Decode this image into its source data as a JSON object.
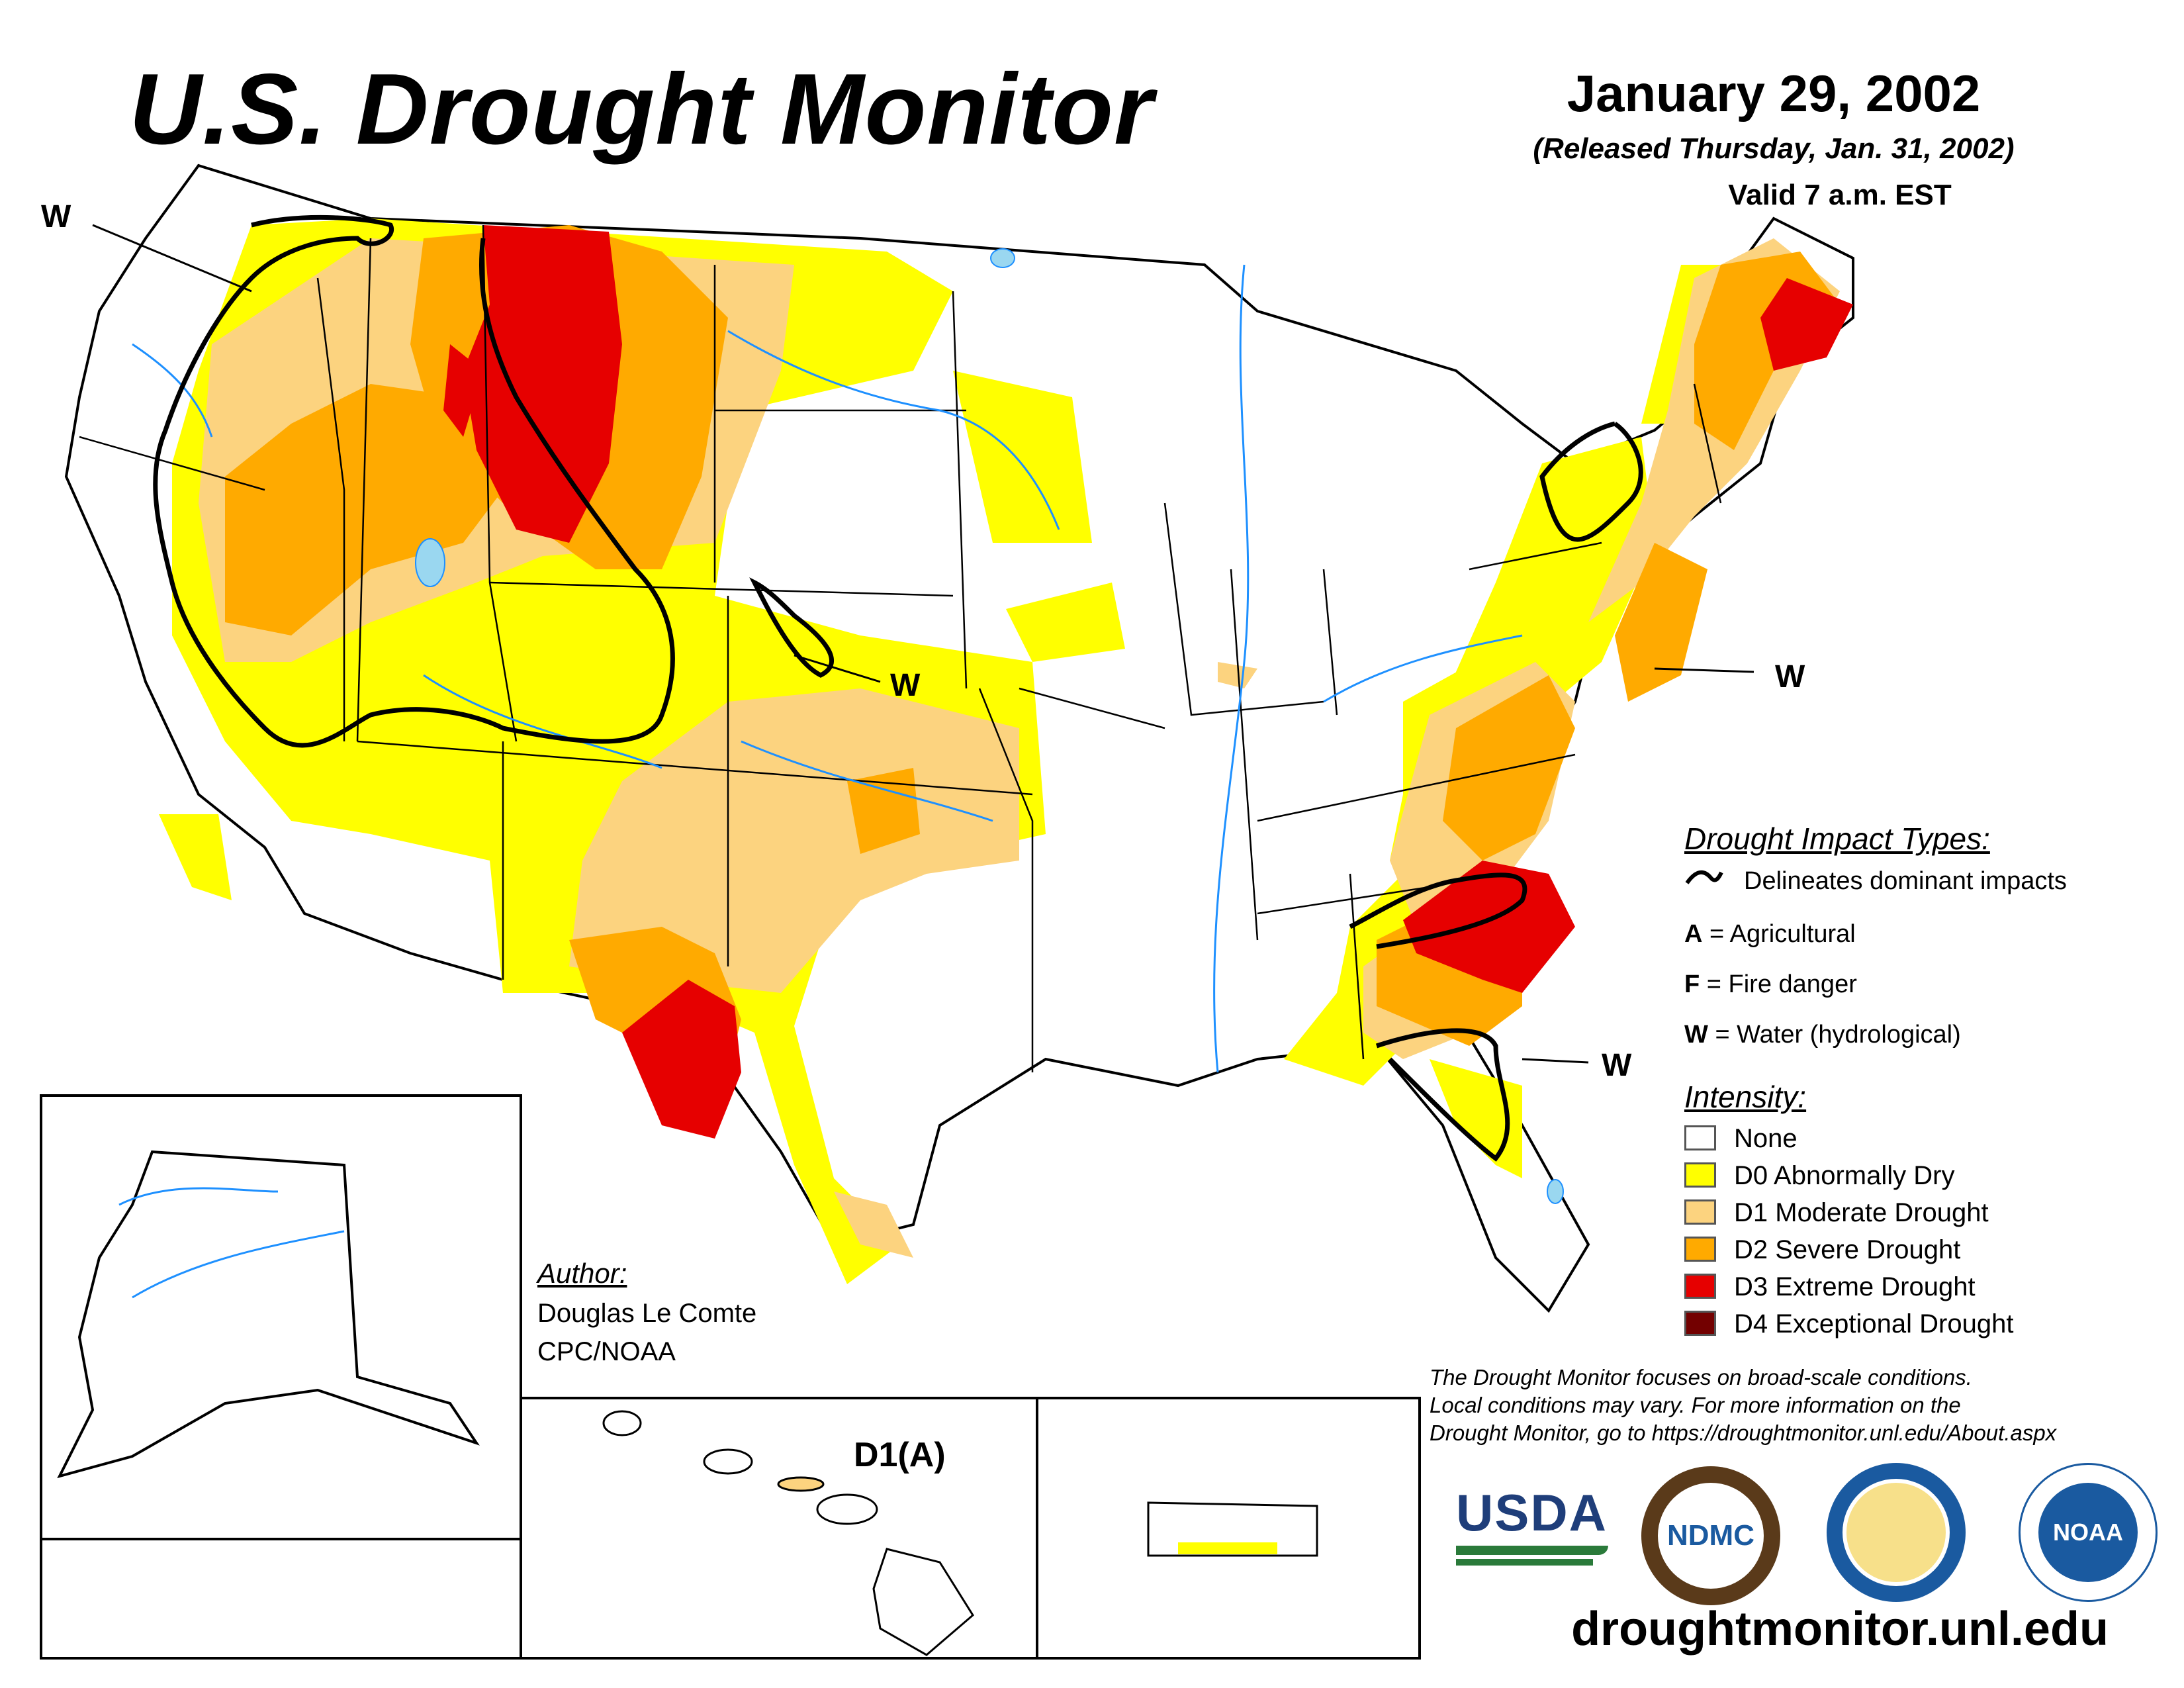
{
  "header": {
    "title": "U.S. Drought Monitor",
    "date": "January 29, 2002",
    "released": "(Released Thursday, Jan. 31, 2002)",
    "valid": "Valid 7 a.m. EST"
  },
  "impact_legend": {
    "heading": "Drought Impact Types:",
    "delineates": "Delineates dominant impacts",
    "types": [
      {
        "code": "A",
        "label": "= Agricultural"
      },
      {
        "code": "F",
        "label": "= Fire danger"
      },
      {
        "code": "W",
        "label": "= Water (hydrological)"
      }
    ]
  },
  "intensity_legend": {
    "heading": "Intensity:",
    "levels": [
      {
        "label": "None",
        "color": "#ffffff"
      },
      {
        "label": "D0 Abnormally Dry",
        "color": "#ffff00"
      },
      {
        "label": "D1 Moderate Drought",
        "color": "#fcd37f"
      },
      {
        "label": "D2 Severe Drought",
        "color": "#ffaa00"
      },
      {
        "label": "D3 Extreme Drought",
        "color": "#e60000"
      },
      {
        "label": "D4 Exceptional Drought",
        "color": "#730000"
      }
    ]
  },
  "map_labels": {
    "w_northwest": "W",
    "w_kansas": "W",
    "w_midatlantic": "W",
    "w_southeast": "W",
    "hawaii": "D1(A)"
  },
  "author": {
    "heading": "Author:",
    "name": "Douglas Le Comte",
    "org": "CPC/NOAA"
  },
  "disclaimer": [
    "The Drought Monitor focuses on broad-scale conditions.",
    "Local conditions may vary. For more information on the",
    "Drought Monitor, go to https://droughtmonitor.unl.edu/About.aspx"
  ],
  "logos": {
    "usda": "USDA",
    "ndmc": "NDMC",
    "noaa": "NOAA"
  },
  "footer_url": "droughtmonitor.unl.edu"
}
